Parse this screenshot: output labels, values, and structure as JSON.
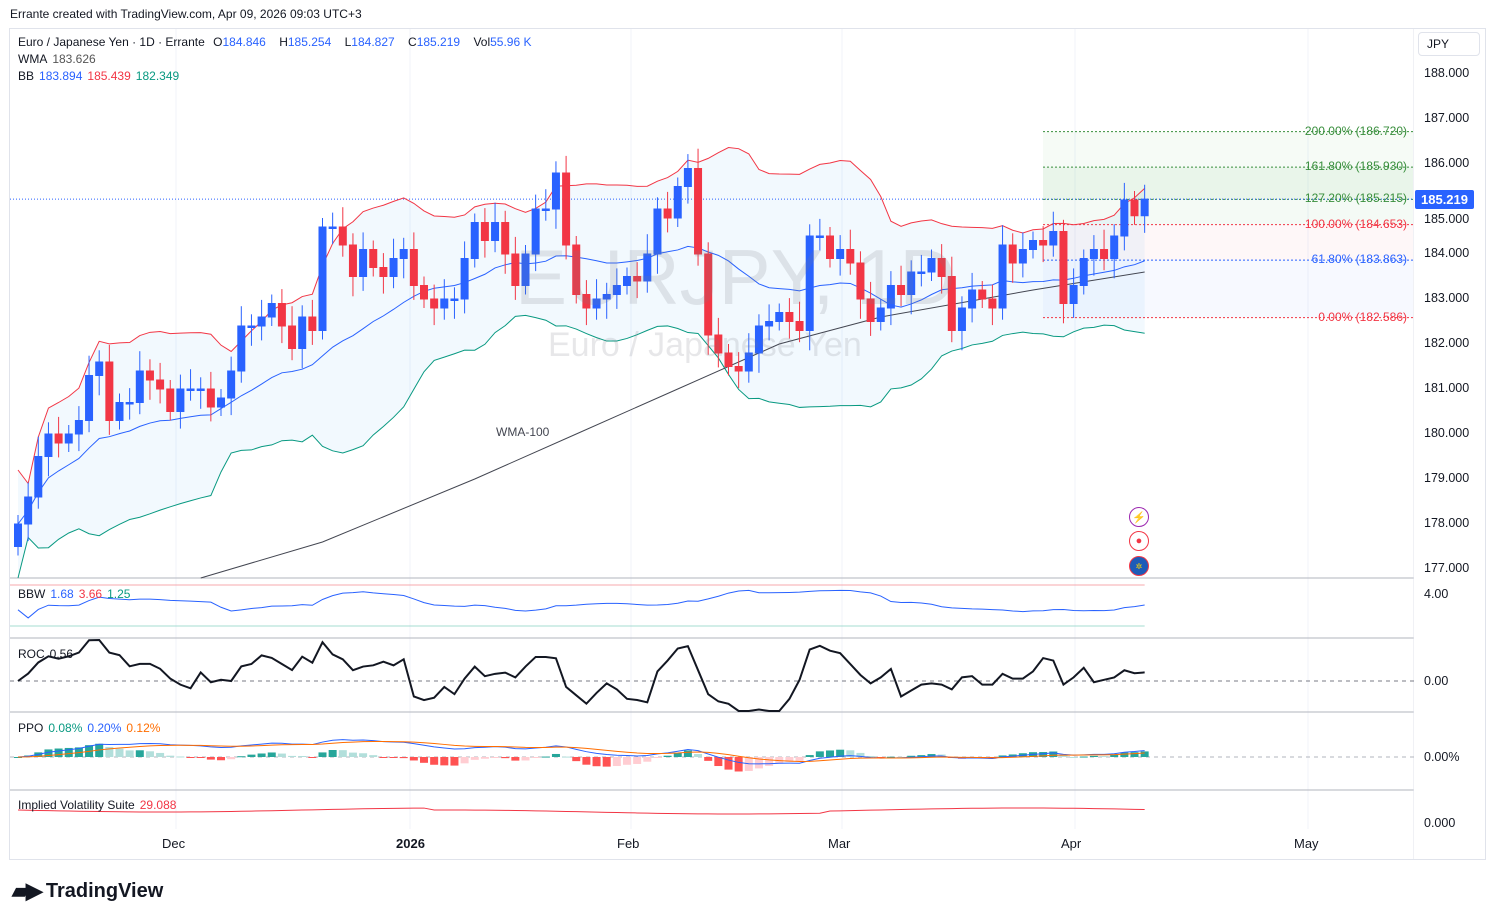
{
  "credit": "Errante created with TradingView.com, Apr 09, 2026 09:03 UTC+3",
  "legend": {
    "symbol": "Euro / Japanese Yen · 1D · Errante",
    "o_label": "O",
    "o": "184.846",
    "h_label": "H",
    "h": "185.254",
    "l_label": "L",
    "l": "184.827",
    "c_label": "C",
    "c": "185.219",
    "vol_label": "Vol",
    "vol": "55.96 K",
    "wma_label": "WMA",
    "wma": "183.626",
    "bb_label": "BB",
    "bb_basis": "183.894",
    "bb_upper": "185.439",
    "bb_lower": "182.349"
  },
  "currency": "JPY",
  "current_price": "185.219",
  "watermark": {
    "ticker": "EURJPY, 1D",
    "name": "Euro / Japanese Yen"
  },
  "wma_line_label": "WMA-100",
  "price_axis": [
    "188.000",
    "187.000",
    "186.000",
    "185.000",
    "184.000",
    "183.000",
    "182.000",
    "181.000",
    "180.000",
    "179.000",
    "178.000",
    "177.000"
  ],
  "time_axis": [
    {
      "label": "Dec",
      "bold": false
    },
    {
      "label": "2026",
      "bold": true
    },
    {
      "label": "Feb",
      "bold": false
    },
    {
      "label": "Mar",
      "bold": false
    },
    {
      "label": "Apr",
      "bold": false
    },
    {
      "label": "May",
      "bold": false
    }
  ],
  "fib": [
    {
      "label": "200.00% (186.720)",
      "price": 186.72,
      "color": "#388e3c"
    },
    {
      "label": "161.80% (185.930)",
      "price": 185.93,
      "color": "#388e3c"
    },
    {
      "label": "127.20% (185.215)",
      "price": 185.215,
      "color": "#388e3c"
    },
    {
      "label": "100.00% (184.653)",
      "price": 184.653,
      "color": "#f23645"
    },
    {
      "label": "61.80% (183.863)",
      "price": 183.863,
      "color": "#2962ff"
    },
    {
      "label": "0.00% (182.586)",
      "price": 182.586,
      "color": "#f23645"
    }
  ],
  "panes": {
    "bbw": {
      "label": "BBW",
      "v1": "1.68",
      "v2": "3.66",
      "v3": "1.25",
      "axis": "4.00"
    },
    "roc": {
      "label": "ROC",
      "v": "0.56",
      "axis": "0.00"
    },
    "ppo": {
      "label": "PPO",
      "v1": "0.08%",
      "v2": "0.20%",
      "v3": "0.12%",
      "axis": "0.00%"
    },
    "iv": {
      "label": "Implied Volatility Suite",
      "v": "29.088",
      "axis": "0.000"
    }
  },
  "events": [
    "lightning-event",
    "red-dot-event",
    "eu-flag-event"
  ],
  "logo": "TradingView",
  "colors": {
    "up": "#2962ff",
    "down": "#f23645",
    "bb_upper": "#f23645",
    "bb_basis": "#2962ff",
    "bb_lower": "#089981",
    "wma": "#434651"
  },
  "chart_data": {
    "type": "candlestick",
    "ylim": [
      176.8,
      188.3
    ],
    "closes": [
      178.0,
      178.6,
      179.5,
      180.0,
      179.8,
      180.0,
      180.3,
      181.3,
      181.6,
      180.3,
      180.7,
      180.7,
      181.4,
      181.2,
      181.0,
      180.5,
      181.0,
      181.0,
      181.0,
      180.6,
      180.8,
      181.4,
      182.4,
      182.4,
      182.6,
      182.9,
      182.4,
      181.9,
      182.6,
      182.3,
      184.6,
      184.6,
      184.2,
      183.5,
      184.1,
      183.7,
      183.5,
      183.9,
      184.1,
      183.3,
      183.0,
      182.8,
      183.0,
      183.0,
      183.9,
      184.7,
      184.3,
      184.7,
      184.0,
      183.3,
      184.0,
      185.0,
      185.0,
      185.8,
      184.2,
      183.1,
      182.8,
      183.0,
      183.1,
      183.3,
      183.5,
      183.4,
      184.0,
      185.0,
      184.8,
      185.5,
      185.9,
      184.0,
      182.2,
      181.8,
      181.5,
      181.4,
      181.8,
      182.4,
      182.5,
      182.7,
      182.5,
      182.3,
      184.4,
      184.4,
      183.9,
      184.1,
      183.8,
      183.0,
      182.5,
      182.8,
      183.3,
      183.1,
      183.6,
      183.6,
      183.9,
      183.5,
      182.3,
      182.8,
      183.2,
      183.0,
      182.8,
      184.2,
      183.8,
      184.1,
      184.3,
      184.2,
      184.5,
      182.9,
      183.3,
      183.9,
      184.1,
      183.9,
      184.4,
      185.2,
      184.85,
      185.219
    ],
    "first_open": 177.5,
    "wma100": [
      [
        18,
        176.8
      ],
      [
        30,
        177.6
      ],
      [
        45,
        179.0
      ],
      [
        55,
        180.0
      ],
      [
        65,
        181.0
      ],
      [
        75,
        182.0
      ],
      [
        85,
        182.6
      ],
      [
        100,
        183.2
      ],
      [
        111,
        183.6
      ]
    ]
  }
}
